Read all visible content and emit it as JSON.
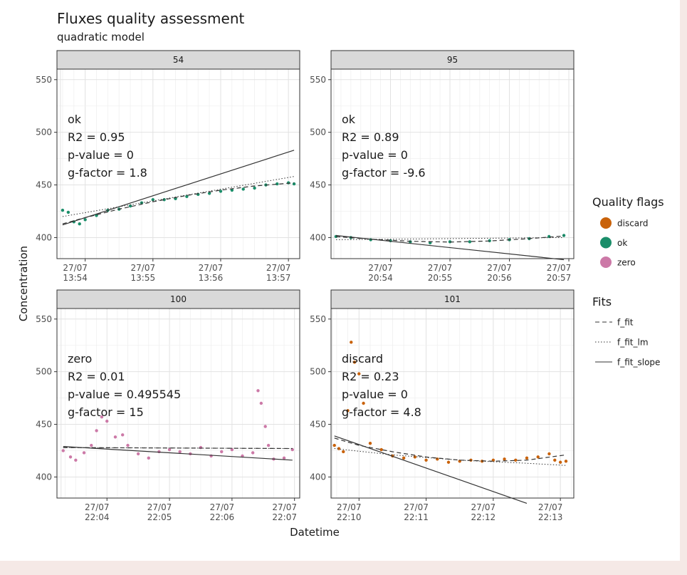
{
  "chart_data": {
    "type": "scatter",
    "title": "Fluxes quality assessment",
    "subtitle": "quadratic model",
    "xlabel": "Datetime",
    "ylabel": "Concentration",
    "ylim": [
      380,
      560
    ],
    "y_ticks": [
      400,
      450,
      500,
      550
    ],
    "grid": true,
    "colors": {
      "discard": "#c9620a",
      "ok": "#1b8e6a",
      "zero": "#cc79a7",
      "strip": "#d9d9d9",
      "fit": "#333333"
    },
    "legend": {
      "position": "right",
      "quality_title": "Quality flags",
      "quality_items": [
        {
          "label": "discard",
          "color": "#c9620a"
        },
        {
          "label": "ok",
          "color": "#1b8e6a"
        },
        {
          "label": "zero",
          "color": "#cc79a7"
        }
      ],
      "fits_title": "Fits",
      "fits_items": [
        {
          "label": "f_fit",
          "dash": "6,4"
        },
        {
          "label": "f_fit_lm",
          "dash": "1.5,2.5"
        },
        {
          "label": "f_fit_slope",
          "dash": ""
        }
      ]
    },
    "panels": [
      {
        "id": "54",
        "flag": "ok",
        "color": "#1b8e6a",
        "xlim": [
          "13:53:35",
          "13:57:10"
        ],
        "x_ticks": [
          {
            "date": "27/07",
            "time": "13:54"
          },
          {
            "date": "27/07",
            "time": "13:55"
          },
          {
            "date": "27/07",
            "time": "13:56"
          },
          {
            "date": "27/07",
            "time": "13:57"
          }
        ],
        "annotation": [
          "ok",
          "R2 = 0.95",
          "p-value = 0",
          "g-factor = 1.8"
        ],
        "points": [
          [
            "13:53:40",
            426
          ],
          [
            "13:53:45",
            424
          ],
          [
            "13:53:50",
            415
          ],
          [
            "13:53:55",
            413
          ],
          [
            "13:54:00",
            417
          ],
          [
            "13:54:10",
            421
          ],
          [
            "13:54:20",
            426
          ],
          [
            "13:54:30",
            427
          ],
          [
            "13:54:40",
            430
          ],
          [
            "13:54:50",
            433
          ],
          [
            "13:55:00",
            436
          ],
          [
            "13:55:10",
            436
          ],
          [
            "13:55:20",
            437
          ],
          [
            "13:55:30",
            439
          ],
          [
            "13:55:40",
            441
          ],
          [
            "13:55:50",
            442
          ],
          [
            "13:56:00",
            444
          ],
          [
            "13:56:10",
            445
          ],
          [
            "13:56:20",
            446
          ],
          [
            "13:56:30",
            447
          ],
          [
            "13:56:40",
            450
          ],
          [
            "13:56:50",
            451
          ],
          [
            "13:57:00",
            452
          ],
          [
            "13:57:05",
            451
          ]
        ],
        "fit": [
          [
            "13:53:40",
            413
          ],
          [
            "13:54:00",
            419
          ],
          [
            "13:54:30",
            427
          ],
          [
            "13:55:00",
            434
          ],
          [
            "13:55:30",
            440
          ],
          [
            "13:56:00",
            445
          ],
          [
            "13:56:30",
            449
          ],
          [
            "13:57:05",
            452
          ]
        ],
        "fit_lm": [
          [
            "13:53:40",
            420
          ],
          [
            "13:57:05",
            458
          ]
        ],
        "fit_slope": [
          [
            "13:53:40",
            412
          ],
          [
            "13:57:05",
            483
          ]
        ]
      },
      {
        "id": "95",
        "flag": "ok",
        "color": "#1b8e6a",
        "xlim": [
          "20:53:00",
          "20:57:05"
        ],
        "x_ticks": [
          {
            "date": "27/07",
            "time": "20:54"
          },
          {
            "date": "27/07",
            "time": "20:55"
          },
          {
            "date": "27/07",
            "time": "20:56"
          },
          {
            "date": "27/07",
            "time": "20:57"
          }
        ],
        "annotation": [
          "ok",
          "R2 = 0.89",
          "p-value = 0",
          "g-factor = -9.6"
        ],
        "points": [
          [
            "20:53:05",
            401
          ],
          [
            "20:53:20",
            400
          ],
          [
            "20:53:40",
            398
          ],
          [
            "20:54:00",
            397
          ],
          [
            "20:54:20",
            396
          ],
          [
            "20:54:40",
            395
          ],
          [
            "20:55:00",
            396
          ],
          [
            "20:55:20",
            396
          ],
          [
            "20:55:40",
            397
          ],
          [
            "20:56:00",
            398
          ],
          [
            "20:56:20",
            399
          ],
          [
            "20:56:40",
            401
          ],
          [
            "20:56:55",
            402
          ]
        ],
        "fit": [
          [
            "20:53:05",
            401
          ],
          [
            "20:53:40",
            398.5
          ],
          [
            "20:54:20",
            396.5
          ],
          [
            "20:55:00",
            395.8
          ],
          [
            "20:55:40",
            396.8
          ],
          [
            "20:56:20",
            399
          ],
          [
            "20:56:55",
            401.5
          ]
        ],
        "fit_lm": [
          [
            "20:53:05",
            398
          ],
          [
            "20:56:55",
            400
          ]
        ],
        "fit_slope": [
          [
            "20:53:05",
            402
          ],
          [
            "20:56:55",
            379
          ]
        ]
      },
      {
        "id": "100",
        "flag": "zero",
        "color": "#cc79a7",
        "xlim": [
          "22:03:12",
          "22:07:05"
        ],
        "x_ticks": [
          {
            "date": "27/07",
            "time": "22:04"
          },
          {
            "date": "27/07",
            "time": "22:05"
          },
          {
            "date": "27/07",
            "time": "22:06"
          },
          {
            "date": "27/07",
            "time": "22:07"
          }
        ],
        "annotation": [
          "zero",
          "R2 = 0.01",
          "p-value = 0.495545",
          "g-factor = 15"
        ],
        "points": [
          [
            "22:03:18",
            425
          ],
          [
            "22:03:25",
            419
          ],
          [
            "22:03:30",
            416
          ],
          [
            "22:03:38",
            423
          ],
          [
            "22:03:45",
            430
          ],
          [
            "22:03:50",
            444
          ],
          [
            "22:03:55",
            457
          ],
          [
            "22:04:00",
            453
          ],
          [
            "22:04:08",
            438
          ],
          [
            "22:04:15",
            440
          ],
          [
            "22:04:20",
            430
          ],
          [
            "22:04:30",
            422
          ],
          [
            "22:04:40",
            418
          ],
          [
            "22:04:50",
            424
          ],
          [
            "22:05:00",
            426
          ],
          [
            "22:05:10",
            424
          ],
          [
            "22:05:20",
            422
          ],
          [
            "22:05:30",
            428
          ],
          [
            "22:05:40",
            420
          ],
          [
            "22:05:50",
            424
          ],
          [
            "22:06:00",
            426
          ],
          [
            "22:06:10",
            420
          ],
          [
            "22:06:20",
            423
          ],
          [
            "22:06:25",
            482
          ],
          [
            "22:06:28",
            470
          ],
          [
            "22:06:32",
            448
          ],
          [
            "22:06:35",
            430
          ],
          [
            "22:06:40",
            417
          ],
          [
            "22:06:50",
            418
          ],
          [
            "22:06:58",
            426
          ]
        ],
        "fit": [
          [
            "22:03:18",
            428
          ],
          [
            "22:06:58",
            427
          ]
        ],
        "fit_lm": [
          [
            "22:03:18",
            428
          ],
          [
            "22:06:58",
            427
          ]
        ],
        "fit_slope": [
          [
            "22:03:18",
            429
          ],
          [
            "22:06:58",
            416
          ]
        ]
      },
      {
        "id": "101",
        "flag": "discard",
        "color": "#c9620a",
        "xlim": [
          "22:09:35",
          "22:13:12"
        ],
        "x_ticks": [
          {
            "date": "27/07",
            "time": "22:10"
          },
          {
            "date": "27/07",
            "time": "22:11"
          },
          {
            "date": "27/07",
            "time": "22:12"
          },
          {
            "date": "27/07",
            "time": "22:13"
          }
        ],
        "annotation": [
          "discard",
          "R2 = 0.23",
          "p-value = 0",
          "g-factor = 4.8"
        ],
        "points": [
          [
            "22:09:38",
            430
          ],
          [
            "22:09:42",
            427
          ],
          [
            "22:09:46",
            424
          ],
          [
            "22:09:50",
            463
          ],
          [
            "22:09:53",
            528
          ],
          [
            "22:09:56",
            509
          ],
          [
            "22:10:00",
            498
          ],
          [
            "22:10:04",
            470
          ],
          [
            "22:10:10",
            432
          ],
          [
            "22:10:20",
            426
          ],
          [
            "22:10:30",
            420
          ],
          [
            "22:10:40",
            418
          ],
          [
            "22:10:50",
            419
          ],
          [
            "22:11:00",
            416
          ],
          [
            "22:11:10",
            417
          ],
          [
            "22:11:20",
            414
          ],
          [
            "22:11:30",
            415
          ],
          [
            "22:11:40",
            416
          ],
          [
            "22:11:50",
            415
          ],
          [
            "22:12:00",
            416
          ],
          [
            "22:12:10",
            417
          ],
          [
            "22:12:20",
            416
          ],
          [
            "22:12:30",
            418
          ],
          [
            "22:12:40",
            419
          ],
          [
            "22:12:50",
            422
          ],
          [
            "22:12:55",
            416
          ],
          [
            "22:13:00",
            414
          ],
          [
            "22:13:05",
            415
          ]
        ],
        "fit": [
          [
            "22:09:38",
            437
          ],
          [
            "22:10:00",
            430
          ],
          [
            "22:10:30",
            424
          ],
          [
            "22:11:00",
            419
          ],
          [
            "22:11:30",
            416
          ],
          [
            "22:12:00",
            415
          ],
          [
            "22:12:30",
            416
          ],
          [
            "22:13:05",
            421
          ]
        ],
        "fit_lm": [
          [
            "22:09:38",
            427
          ],
          [
            "22:10:30",
            421
          ],
          [
            "22:11:30",
            416
          ],
          [
            "22:12:30",
            413
          ],
          [
            "22:13:05",
            411
          ]
        ],
        "fit_slope": [
          [
            "22:09:38",
            439
          ],
          [
            "22:12:30",
            375
          ]
        ]
      }
    ]
  }
}
